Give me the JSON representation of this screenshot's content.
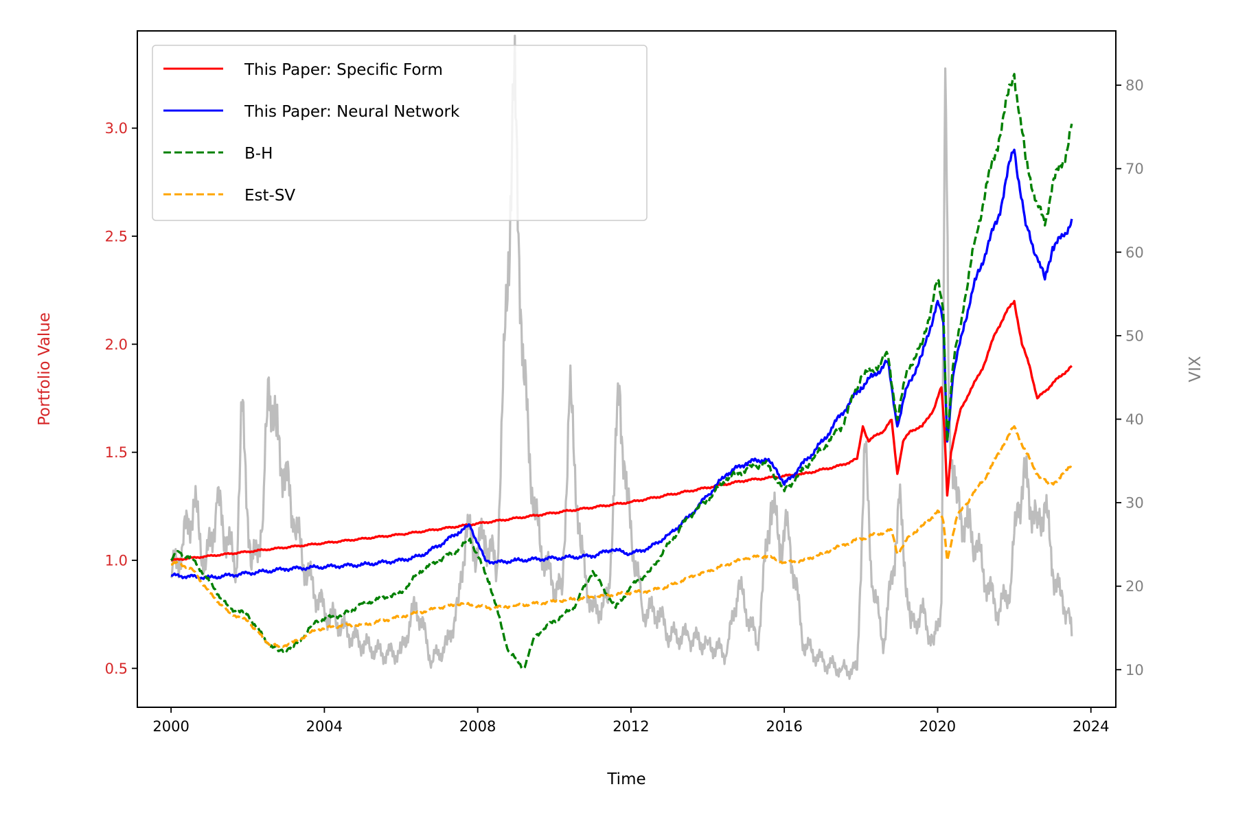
{
  "chart_data": {
    "type": "line",
    "xlabel": "Time",
    "ylabel_left": "Portfolio Value",
    "ylabel_right": "VIX",
    "xlim": [
      1999.12,
      2024.65
    ],
    "ylim_left": [
      0.32,
      3.45
    ],
    "ylim_right": [
      5.5,
      86.5
    ],
    "x_ticks": [
      2000,
      2004,
      2008,
      2012,
      2016,
      2020,
      2024
    ],
    "y_ticks_left": [
      0.5,
      1.0,
      1.5,
      2.0,
      2.5,
      3.0
    ],
    "y_ticks_right": [
      10,
      20,
      30,
      40,
      50,
      60,
      70,
      80
    ],
    "x_tick_labels": [
      "2000",
      "2004",
      "2008",
      "2012",
      "2016",
      "2020",
      "2024"
    ],
    "y_tick_labels_left": [
      "0.5",
      "1.0",
      "1.5",
      "2.0",
      "2.5",
      "3.0"
    ],
    "y_tick_labels_right": [
      "10",
      "20",
      "30",
      "40",
      "50",
      "60",
      "70",
      "80"
    ],
    "colors": {
      "left_axis": "#d62728",
      "right_axis": "#808080",
      "vix": "#bdbdbd"
    },
    "legend": {
      "placement": "upper-left"
    },
    "series": [
      {
        "name": "This Paper: Specific Form",
        "axis": "left",
        "color": "#ff0000",
        "style": "solid",
        "x": [
          2000.0,
          2002.0,
          2004.0,
          2006.0,
          2008.0,
          2010.0,
          2012.0,
          2013.5,
          2015.0,
          2016.5,
          2017.5,
          2017.9,
          2018.05,
          2018.2,
          2018.4,
          2018.6,
          2018.8,
          2018.95,
          2019.1,
          2019.3,
          2019.6,
          2019.9,
          2020.1,
          2020.18,
          2020.25,
          2020.35,
          2020.6,
          2020.9,
          2021.2,
          2021.5,
          2021.8,
          2022.0,
          2022.2,
          2022.4,
          2022.6,
          2022.8,
          2023.0,
          2023.2,
          2023.5
        ],
        "values": [
          1.0,
          1.04,
          1.08,
          1.12,
          1.17,
          1.22,
          1.27,
          1.32,
          1.37,
          1.4,
          1.44,
          1.47,
          1.62,
          1.55,
          1.58,
          1.6,
          1.65,
          1.4,
          1.55,
          1.6,
          1.62,
          1.7,
          1.8,
          1.6,
          1.3,
          1.5,
          1.7,
          1.8,
          1.9,
          2.05,
          2.15,
          2.2,
          2.0,
          1.9,
          1.75,
          1.78,
          1.82,
          1.85,
          1.9
        ]
      },
      {
        "name": "This Paper: Neural Network",
        "axis": "left",
        "color": "#0000ff",
        "style": "solid",
        "x": [
          2000.0,
          2001.0,
          2002.0,
          2003.0,
          2004.0,
          2005.0,
          2006.0,
          2006.5,
          2007.0,
          2007.5,
          2007.8,
          2008.0,
          2008.2,
          2008.5,
          2009.0,
          2010.0,
          2011.0,
          2011.5,
          2012.0,
          2012.5,
          2013.0,
          2013.5,
          2014.0,
          2014.5,
          2015.0,
          2015.5,
          2015.8,
          2016.0,
          2016.5,
          2017.0,
          2017.5,
          2018.0,
          2018.3,
          2018.7,
          2018.95,
          2019.2,
          2019.6,
          2020.0,
          2020.15,
          2020.25,
          2020.4,
          2020.7,
          2021.0,
          2021.3,
          2021.6,
          2021.9,
          2022.0,
          2022.3,
          2022.6,
          2022.8,
          2023.0,
          2023.3,
          2023.5
        ],
        "values": [
          0.93,
          0.92,
          0.94,
          0.96,
          0.97,
          0.98,
          1.0,
          1.02,
          1.07,
          1.13,
          1.16,
          1.08,
          1.0,
          0.99,
          1.0,
          1.01,
          1.02,
          1.05,
          1.03,
          1.06,
          1.12,
          1.2,
          1.3,
          1.4,
          1.45,
          1.47,
          1.42,
          1.35,
          1.45,
          1.55,
          1.68,
          1.8,
          1.85,
          1.92,
          1.62,
          1.8,
          1.95,
          2.2,
          2.1,
          1.55,
          1.85,
          2.1,
          2.3,
          2.45,
          2.6,
          2.85,
          2.9,
          2.55,
          2.4,
          2.3,
          2.45,
          2.5,
          2.58
        ]
      },
      {
        "name": "B-H",
        "axis": "left",
        "color": "#008000",
        "style": "dashed",
        "x": [
          2000.0,
          2000.2,
          2000.6,
          2001.0,
          2001.5,
          2002.0,
          2002.5,
          2002.8,
          2003.2,
          2003.8,
          2004.5,
          2005.0,
          2006.0,
          2006.5,
          2007.0,
          2007.5,
          2007.8,
          2008.3,
          2008.8,
          2009.2,
          2009.5,
          2010.0,
          2010.5,
          2011.0,
          2011.6,
          2012.0,
          2012.5,
          2013.0,
          2013.5,
          2014.0,
          2014.5,
          2015.0,
          2015.5,
          2015.8,
          2016.0,
          2016.5,
          2017.0,
          2017.5,
          2018.0,
          2018.3,
          2018.7,
          2018.95,
          2019.2,
          2019.6,
          2020.0,
          2020.15,
          2020.25,
          2020.4,
          2020.7,
          2021.0,
          2021.3,
          2021.6,
          2021.9,
          2022.0,
          2022.3,
          2022.6,
          2022.8,
          2023.0,
          2023.3,
          2023.5
        ],
        "values": [
          1.0,
          1.04,
          1.0,
          0.9,
          0.78,
          0.75,
          0.62,
          0.58,
          0.6,
          0.72,
          0.75,
          0.8,
          0.85,
          0.95,
          1.0,
          1.05,
          1.1,
          0.9,
          0.58,
          0.5,
          0.65,
          0.72,
          0.78,
          0.95,
          0.78,
          0.88,
          0.95,
          1.08,
          1.2,
          1.28,
          1.38,
          1.42,
          1.45,
          1.38,
          1.32,
          1.42,
          1.52,
          1.62,
          1.85,
          1.88,
          1.95,
          1.65,
          1.88,
          2.0,
          2.3,
          2.15,
          1.55,
          1.9,
          2.2,
          2.5,
          2.75,
          2.95,
          3.2,
          3.25,
          2.85,
          2.65,
          2.55,
          2.75,
          2.85,
          3.02
        ]
      },
      {
        "name": "Est-SV",
        "axis": "left",
        "color": "#ffa500",
        "style": "dashed",
        "x": [
          2000.0,
          2000.2,
          2000.6,
          2001.0,
          2001.5,
          2002.0,
          2002.5,
          2002.8,
          2003.2,
          2003.8,
          2004.5,
          2005.0,
          2006.0,
          2007.0,
          2007.6,
          2008.3,
          2009.0,
          2010.0,
          2011.0,
          2012.0,
          2012.5,
          2013.0,
          2013.5,
          2014.0,
          2014.5,
          2015.0,
          2015.5,
          2016.0,
          2016.5,
          2017.0,
          2017.5,
          2018.0,
          2018.4,
          2018.8,
          2018.95,
          2019.3,
          2019.7,
          2020.0,
          2020.15,
          2020.25,
          2020.5,
          2020.9,
          2021.3,
          2021.7,
          2022.0,
          2022.3,
          2022.6,
          2022.9,
          2023.2,
          2023.5
        ],
        "values": [
          0.98,
          0.99,
          0.95,
          0.85,
          0.76,
          0.72,
          0.62,
          0.6,
          0.62,
          0.68,
          0.7,
          0.7,
          0.74,
          0.78,
          0.8,
          0.78,
          0.79,
          0.81,
          0.83,
          0.85,
          0.86,
          0.88,
          0.92,
          0.95,
          0.98,
          1.01,
          1.02,
          0.99,
          1.0,
          1.03,
          1.07,
          1.1,
          1.12,
          1.14,
          1.03,
          1.12,
          1.17,
          1.23,
          1.18,
          1.0,
          1.2,
          1.3,
          1.4,
          1.53,
          1.62,
          1.5,
          1.4,
          1.35,
          1.38,
          1.45
        ]
      },
      {
        "name": "VIX",
        "axis": "right",
        "color": "#bdbdbd",
        "style": "solid",
        "x": [
          2000.0,
          2000.3,
          2000.6,
          2000.9,
          2001.2,
          2001.5,
          2001.7,
          2001.85,
          2002.1,
          2002.4,
          2002.55,
          2002.75,
          2002.95,
          2003.2,
          2003.5,
          2004.0,
          2004.5,
          2005.0,
          2005.5,
          2006.0,
          2006.4,
          2006.8,
          2007.2,
          2007.5,
          2007.7,
          2007.9,
          2008.2,
          2008.5,
          2008.8,
          2008.95,
          2009.2,
          2009.5,
          2009.8,
          2010.2,
          2010.4,
          2010.7,
          2011.0,
          2011.4,
          2011.7,
          2011.9,
          2012.3,
          2012.7,
          2013.0,
          2013.5,
          2014.0,
          2014.5,
          2014.8,
          2015.3,
          2015.65,
          2015.9,
          2016.1,
          2016.5,
          2017.0,
          2017.5,
          2017.9,
          2018.1,
          2018.3,
          2018.6,
          2018.9,
          2019.0,
          2019.3,
          2019.6,
          2019.9,
          2020.1,
          2020.2,
          2020.3,
          2020.5,
          2020.8,
          2021.0,
          2021.3,
          2021.6,
          2021.9,
          2022.1,
          2022.3,
          2022.6,
          2022.8,
          2023.0,
          2023.2,
          2023.4,
          2023.5
        ],
        "values": [
          21,
          25,
          30,
          22,
          30,
          25,
          22,
          41,
          22,
          28,
          45,
          38,
          34,
          28,
          22,
          17,
          15,
          13,
          12,
          12,
          18,
          11,
          13,
          18,
          27,
          24,
          26,
          22,
          60,
          80,
          45,
          28,
          22,
          19,
          43,
          24,
          17,
          18,
          44,
          30,
          17,
          17,
          14,
          14,
          13,
          12,
          20,
          13,
          30,
          25,
          27,
          13,
          11,
          10,
          10,
          37,
          20,
          13,
          25,
          30,
          15,
          17,
          13,
          18,
          82,
          40,
          30,
          27,
          25,
          20,
          17,
          20,
          30,
          33,
          27,
          30,
          22,
          19,
          17,
          14
        ]
      }
    ]
  }
}
